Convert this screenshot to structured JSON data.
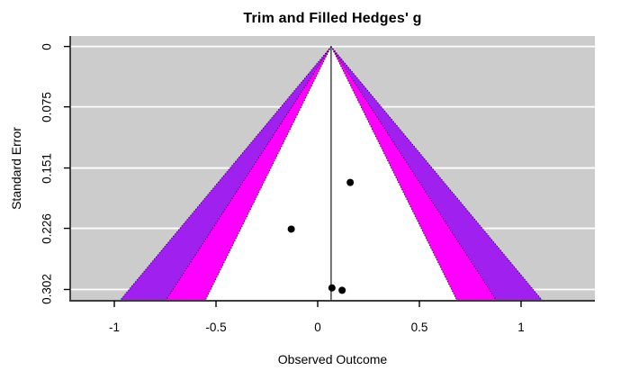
{
  "chart_data": {
    "type": "scatter",
    "subtype": "funnel-plot-trim-and-fill",
    "title": "Trim and Filled Hedges' g",
    "xlabel": "Observed Outcome",
    "ylabel": "Standard Error",
    "x_ticks": [
      -1,
      -0.5,
      0,
      0.5,
      1
    ],
    "x_tick_labels": [
      "-1",
      "-0.5",
      "0",
      "0.5",
      "1"
    ],
    "y_ticks": [
      0,
      0.075,
      0.151,
      0.226,
      0.302
    ],
    "y_tick_labels": [
      "0",
      "0.075",
      "0.151",
      "0.226",
      "0.302"
    ],
    "xlim": [
      -1.217,
      1.363
    ],
    "ylim_se": [
      -0.013,
      0.316
    ],
    "center_estimate": 0.066,
    "contour_z": [
      1.96,
      2.576,
      3.29
    ],
    "contour_colors": [
      "#FFFFFF",
      "#FF00FF",
      "#A020F0"
    ],
    "contour_edge_color": "#000000",
    "background_color": "#CCCCCC",
    "gridline_color": "#FFFFFF",
    "axis_color": "#000000",
    "x_axis_line_color": "#3d3d3d",
    "center_line_color": "#1a1a1a",
    "point_color": "#000000",
    "points": [
      {
        "x": 0.16,
        "se": 0.169
      },
      {
        "x": -0.13,
        "se": 0.227
      },
      {
        "x": 0.07,
        "se": 0.3
      },
      {
        "x": 0.12,
        "se": 0.303
      }
    ],
    "legend": null,
    "grid": "horizontal-white-on-gray"
  }
}
